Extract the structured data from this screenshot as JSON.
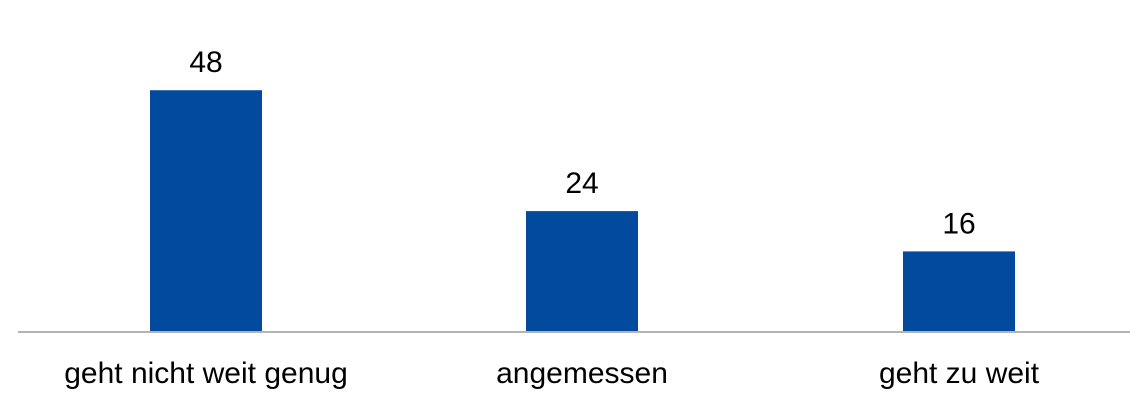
{
  "chart_data": {
    "type": "bar",
    "categories": [
      "geht nicht weit genug",
      "angemessen",
      "geht zu weit"
    ],
    "values": [
      48,
      24,
      16
    ],
    "value_labels": [
      "48",
      "24",
      "16"
    ],
    "ylim": [
      0,
      54
    ],
    "bar_color": "#024a9e",
    "axis_color": "#b3b3b3",
    "text_color": "#000000",
    "grid": false,
    "legend": "none"
  }
}
